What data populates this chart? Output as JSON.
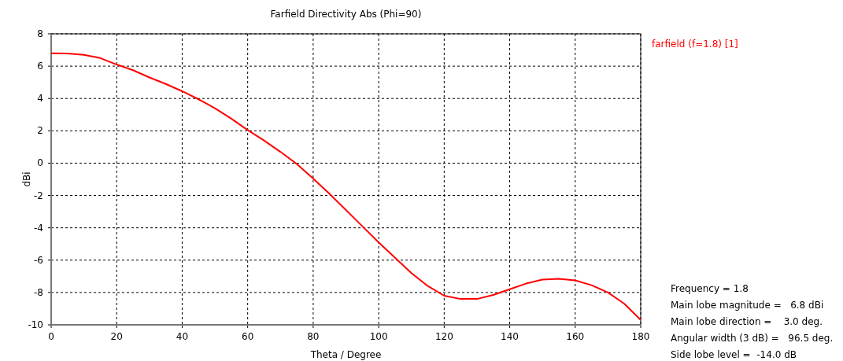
{
  "chart_data": {
    "type": "line",
    "title": "Farfield Directivity Abs (Phi=90)",
    "xlabel": "Theta / Degree",
    "ylabel": "dBi",
    "x": [
      0,
      5,
      10,
      15,
      20,
      25,
      30,
      35,
      40,
      45,
      50,
      55,
      60,
      65,
      70,
      75,
      80,
      85,
      90,
      95,
      100,
      105,
      110,
      115,
      120,
      125,
      130,
      135,
      140,
      145,
      150,
      155,
      160,
      165,
      170,
      175,
      180
    ],
    "series": [
      {
        "name": "farfield (f=1.8) [1]",
        "color": "#ff0000",
        "values": [
          6.8,
          6.78,
          6.7,
          6.5,
          6.1,
          5.75,
          5.3,
          4.9,
          4.45,
          3.95,
          3.4,
          2.75,
          2.05,
          1.4,
          0.7,
          -0.05,
          -0.95,
          -1.9,
          -2.9,
          -3.9,
          -4.9,
          -5.85,
          -6.8,
          -7.6,
          -8.2,
          -8.4,
          -8.4,
          -8.15,
          -7.8,
          -7.45,
          -7.2,
          -7.15,
          -7.25,
          -7.55,
          -8.0,
          -8.7,
          -9.7
        ]
      }
    ],
    "xlim": [
      0,
      180
    ],
    "xticks": [
      0,
      20,
      40,
      60,
      80,
      100,
      120,
      140,
      160,
      180
    ],
    "ylim": [
      -10,
      8
    ],
    "yticks": [
      -10,
      -8,
      -6,
      -4,
      -2,
      0,
      2,
      4,
      6,
      8
    ],
    "grid": true,
    "legend": "top right",
    "line_style": "solid",
    "marker": "none",
    "annotations": [
      "Frequency = 1.8",
      "Main lobe magnitude =   6.8 dBi",
      "Main lobe direction =    3.0 deg.",
      "Angular width (3 dB) =   96.5 deg.",
      "Side lobe level =  -14.0 dB"
    ]
  }
}
